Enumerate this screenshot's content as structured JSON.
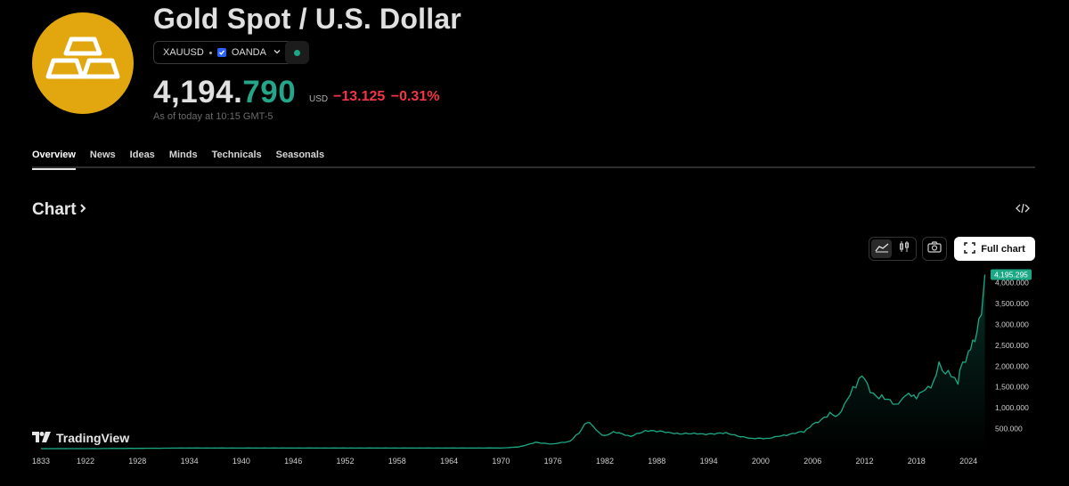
{
  "header": {
    "logo_icon": "gold-bars-icon",
    "title": "Gold Spot / U.S. Dollar",
    "symbol": "XAUUSD",
    "exchange": "OANDA",
    "price_int": "4,194.",
    "price_dec": "790",
    "currency": "USD",
    "change": "−13.125",
    "change_pct": "−0.31%",
    "as_of": "As of today at 10:15 GMT-5"
  },
  "tabs": [
    {
      "label": "Overview",
      "active": true
    },
    {
      "label": "News",
      "active": false
    },
    {
      "label": "Ideas",
      "active": false
    },
    {
      "label": "Minds",
      "active": false
    },
    {
      "label": "Technicals",
      "active": false
    },
    {
      "label": "Seasonals",
      "active": false
    }
  ],
  "chart_section": {
    "heading": "Chart",
    "full_chart_label": "Full chart",
    "watermark": "TradingView"
  },
  "colors": {
    "brand_gold": "#e2a70f",
    "up": "#25a58a",
    "down": "#f23645",
    "line": "#1ba885"
  },
  "chart_data": {
    "type": "area",
    "title": "",
    "x_tick_labels": [
      "1833",
      "1922",
      "1928",
      "1934",
      "1940",
      "1946",
      "1952",
      "1958",
      "1964",
      "1970",
      "1976",
      "1982",
      "1988",
      "1994",
      "2000",
      "2006",
      "2012",
      "2018",
      "2024"
    ],
    "y_tick_labels": [
      "4,000.000",
      "3,500.000",
      "3,000.000",
      "2,500.000",
      "2,000.000",
      "1,500.000",
      "1,000.000",
      "500.000"
    ],
    "ylim": [
      0,
      4300
    ],
    "last_value_label": "4,195.295",
    "series": [
      {
        "x": [
          1833,
          1922,
          1934,
          1940,
          1960,
          1970,
          1972,
          1974,
          1976,
          1978,
          1979,
          1980,
          1980.5,
          1981,
          1982,
          1983,
          1985,
          1987,
          1990,
          1993,
          1996,
          1999,
          2001,
          2003,
          2005,
          2006,
          2008,
          2009,
          2010,
          2011,
          2011.7,
          2012,
          2013,
          2014,
          2015.9,
          2016.5,
          2018,
          2019,
          2020,
          2020.6,
          2021,
          2022,
          2022.8,
          2023,
          2024,
          2024.5,
          2025,
          2025.2,
          2025.5,
          2025.9
        ],
        "y": [
          20,
          21,
          35,
          35,
          35,
          36,
          60,
          170,
          130,
          200,
          400,
          680,
          600,
          450,
          320,
          420,
          320,
          460,
          390,
          370,
          390,
          260,
          270,
          350,
          430,
          600,
          850,
          800,
          1200,
          1550,
          1850,
          1700,
          1300,
          1250,
          1080,
          1300,
          1280,
          1450,
          1600,
          2000,
          1850,
          1800,
          1650,
          1950,
          2300,
          2500,
          2750,
          3200,
          3400,
          4195
        ]
      }
    ]
  }
}
